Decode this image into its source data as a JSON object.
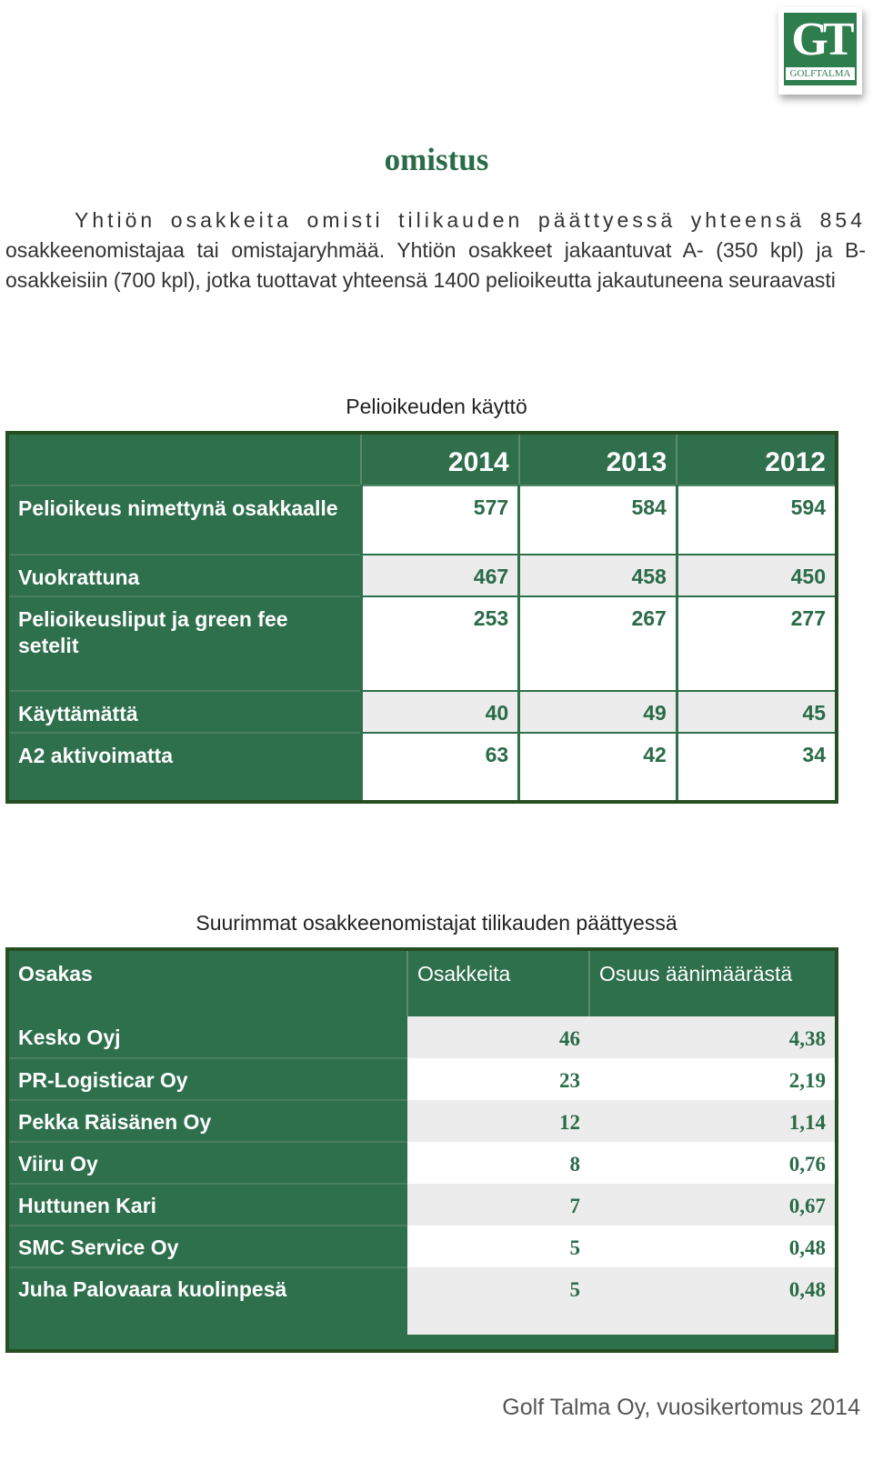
{
  "logo": {
    "letters": "GT",
    "sub": "GOLFTALMA"
  },
  "heading": "omistus",
  "intro": {
    "line1": "Yhtiön osakkeita omisti tilikauden päättyessä yhteensä 854",
    "rest": "osakkeenomistajaa tai omistajaryhmää. Yhtiön osakkeet jakaantuvat A- (350 kpl) ja B-osakkeisiin (700 kpl), jotka tuottavat yhteensä 1400 pelioikeutta jakautuneena seuraavasti"
  },
  "usage_table": {
    "caption": "Pelioikeuden käyttö",
    "years": [
      "2014",
      "2013",
      "2012"
    ],
    "rows": [
      {
        "label": "Pelioikeus nimettynä osakkaalle",
        "values": [
          "577",
          "584",
          "594"
        ]
      },
      {
        "label": "Vuokrattuna",
        "values": [
          "467",
          "458",
          "450"
        ]
      },
      {
        "label": "Pelioikeusliput ja green fee setelit",
        "values": [
          "253",
          "267",
          "277"
        ]
      },
      {
        "label": "Käyttämättä",
        "values": [
          "40",
          "49",
          "45"
        ]
      },
      {
        "label": "A2 aktivoimatta",
        "values": [
          "63",
          "42",
          "34"
        ]
      }
    ]
  },
  "owners_table": {
    "caption": "Suurimmat osakkeenomistajat tilikauden päättyessä",
    "headers": [
      "Osakas",
      "Osakkeita",
      "Osuus äänimäärästä"
    ],
    "rows": [
      {
        "name": "Kesko Oyj",
        "shares": "46",
        "share_pct": "4,38"
      },
      {
        "name": "PR-Logisticar Oy",
        "shares": "23",
        "share_pct": "2,19"
      },
      {
        "name": "Pekka Räisänen Oy",
        "shares": "12",
        "share_pct": "1,14"
      },
      {
        "name": "Viiru Oy",
        "shares": "8",
        "share_pct": "0,76"
      },
      {
        "name": "Huttunen Kari",
        "shares": "7",
        "share_pct": "0,67"
      },
      {
        "name": "SMC Service Oy",
        "shares": "5",
        "share_pct": "0,48"
      },
      {
        "name": "Juha Palovaara kuolinpesä",
        "shares": "5",
        "share_pct": "0,48"
      }
    ]
  },
  "footer": "Golf Talma Oy, vuosikertomus 2014",
  "colors": {
    "brand_green": "#2e6f4c",
    "frame": "#274d22",
    "number_green": "#2a6b48"
  }
}
